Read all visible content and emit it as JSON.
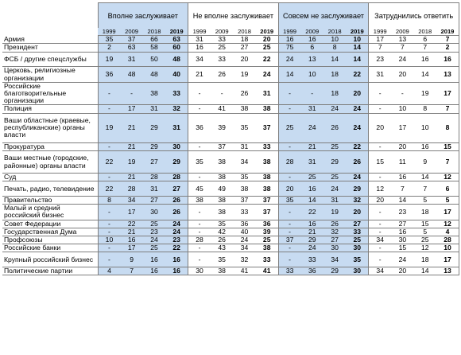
{
  "groups": [
    {
      "title": "Вполне заслуживает",
      "shade": true
    },
    {
      "title": "Не вполне заслуживает",
      "shade": false
    },
    {
      "title": "Совсем не заслуживает",
      "shade": true
    },
    {
      "title": "Затруднились ответить",
      "shade": false
    }
  ],
  "years": [
    "1999",
    "2009",
    "2018",
    "2019"
  ],
  "rows": [
    {
      "label": "Армия",
      "lines": 1,
      "values": [
        [
          "35",
          "37",
          "66",
          "63"
        ],
        [
          "31",
          "33",
          "18",
          "20"
        ],
        [
          "16",
          "16",
          "10",
          "10"
        ],
        [
          "17",
          "13",
          "6",
          "7"
        ]
      ]
    },
    {
      "label": "Президент",
      "lines": 1,
      "values": [
        [
          "2",
          "63",
          "58",
          "60"
        ],
        [
          "16",
          "25",
          "27",
          "25"
        ],
        [
          "75",
          "6",
          "8",
          "14"
        ],
        [
          "7",
          "7",
          "7",
          "2"
        ]
      ]
    },
    {
      "label": "ФСБ / другие спецслужбы",
      "lines": 2,
      "values": [
        [
          "19",
          "31",
          "50",
          "48"
        ],
        [
          "34",
          "33",
          "20",
          "22"
        ],
        [
          "24",
          "13",
          "14",
          "14"
        ],
        [
          "23",
          "24",
          "16",
          "16"
        ]
      ]
    },
    {
      "label": "Церковь, религиозные организации",
      "lines": 2,
      "values": [
        [
          "36",
          "48",
          "48",
          "40"
        ],
        [
          "21",
          "26",
          "19",
          "24"
        ],
        [
          "14",
          "10",
          "18",
          "22"
        ],
        [
          "31",
          "20",
          "14",
          "13"
        ]
      ]
    },
    {
      "label": "Российские благотворительные организации",
      "lines": 3,
      "values": [
        [
          "-",
          "-",
          "38",
          "33"
        ],
        [
          "-",
          "-",
          "26",
          "31"
        ],
        [
          "-",
          "-",
          "18",
          "20"
        ],
        [
          "-",
          "-",
          "19",
          "17"
        ]
      ]
    },
    {
      "label": "Полиция",
      "lines": 1,
      "values": [
        [
          "-",
          "17",
          "31",
          "32"
        ],
        [
          "-",
          "41",
          "38",
          "38"
        ],
        [
          "-",
          "31",
          "24",
          "24"
        ],
        [
          "-",
          "10",
          "8",
          "7"
        ]
      ]
    },
    {
      "label": "Ваши областные (краевые, республиканские) органы власти",
      "lines": 4,
      "values": [
        [
          "19",
          "21",
          "29",
          "31"
        ],
        [
          "36",
          "39",
          "35",
          "37"
        ],
        [
          "25",
          "24",
          "26",
          "24"
        ],
        [
          "20",
          "17",
          "10",
          "8"
        ]
      ]
    },
    {
      "label": "Прокуратура",
      "lines": 1,
      "values": [
        [
          "-",
          "21",
          "29",
          "30"
        ],
        [
          "-",
          "37",
          "31",
          "33"
        ],
        [
          "-",
          "21",
          "25",
          "22"
        ],
        [
          "-",
          "20",
          "16",
          "15"
        ]
      ]
    },
    {
      "label": "Ваши местные (городские, районные) органы власти",
      "lines": 3,
      "values": [
        [
          "22",
          "19",
          "27",
          "29"
        ],
        [
          "35",
          "38",
          "34",
          "38"
        ],
        [
          "28",
          "31",
          "29",
          "26"
        ],
        [
          "15",
          "11",
          "9",
          "7"
        ]
      ]
    },
    {
      "label": "Суд",
      "lines": 1,
      "values": [
        [
          "-",
          "21",
          "28",
          "28"
        ],
        [
          "-",
          "38",
          "35",
          "38"
        ],
        [
          "-",
          "25",
          "25",
          "24"
        ],
        [
          "-",
          "16",
          "14",
          "12"
        ]
      ]
    },
    {
      "label": "Печать, радио, телевидение",
      "lines": 2,
      "values": [
        [
          "22",
          "28",
          "31",
          "27"
        ],
        [
          "45",
          "49",
          "38",
          "38"
        ],
        [
          "20",
          "16",
          "24",
          "29"
        ],
        [
          "12",
          "7",
          "7",
          "6"
        ]
      ]
    },
    {
      "label": "Правительство",
      "lines": 1,
      "values": [
        [
          "8",
          "34",
          "27",
          "26"
        ],
        [
          "38",
          "38",
          "37",
          "37"
        ],
        [
          "35",
          "14",
          "31",
          "32"
        ],
        [
          "20",
          "14",
          "5",
          "5"
        ]
      ]
    },
    {
      "label": "Малый и средний российский бизнес",
      "lines": 2,
      "values": [
        [
          "-",
          "17",
          "30",
          "26"
        ],
        [
          "-",
          "38",
          "33",
          "37"
        ],
        [
          "-",
          "22",
          "19",
          "20"
        ],
        [
          "-",
          "23",
          "18",
          "17"
        ]
      ]
    },
    {
      "label": "Совет Федерации",
      "lines": 1,
      "values": [
        [
          "-",
          "22",
          "25",
          "24"
        ],
        [
          "-",
          "35",
          "36",
          "36"
        ],
        [
          "-",
          "16",
          "26",
          "27"
        ],
        [
          "-",
          "27",
          "15",
          "12"
        ]
      ]
    },
    {
      "label": "Государственная Дума",
      "lines": 1,
      "values": [
        [
          "-",
          "21",
          "23",
          "24"
        ],
        [
          "-",
          "42",
          "40",
          "39"
        ],
        [
          "-",
          "21",
          "32",
          "33"
        ],
        [
          "-",
          "16",
          "5",
          "4"
        ]
      ]
    },
    {
      "label": "Профсоюзы",
      "lines": 1,
      "values": [
        [
          "10",
          "16",
          "24",
          "23"
        ],
        [
          "28",
          "26",
          "24",
          "25"
        ],
        [
          "37",
          "29",
          "27",
          "25"
        ],
        [
          "34",
          "30",
          "25",
          "28"
        ]
      ]
    },
    {
      "label": "Российские банки",
      "lines": 1,
      "values": [
        [
          "-",
          "17",
          "25",
          "22"
        ],
        [
          "-",
          "43",
          "34",
          "38"
        ],
        [
          "-",
          "24",
          "30",
          "30"
        ],
        [
          "-",
          "15",
          "12",
          "10"
        ]
      ]
    },
    {
      "label": "Крупный российский бизнес",
      "lines": 2,
      "values": [
        [
          "-",
          "9",
          "16",
          "16"
        ],
        [
          "-",
          "35",
          "32",
          "33"
        ],
        [
          "-",
          "33",
          "34",
          "35"
        ],
        [
          "-",
          "24",
          "18",
          "17"
        ]
      ]
    },
    {
      "label": "Политические партии",
      "lines": 1,
      "values": [
        [
          "4",
          "7",
          "16",
          "16"
        ],
        [
          "30",
          "38",
          "41",
          "41"
        ],
        [
          "33",
          "36",
          "29",
          "30"
        ],
        [
          "34",
          "20",
          "14",
          "13"
        ]
      ]
    }
  ]
}
